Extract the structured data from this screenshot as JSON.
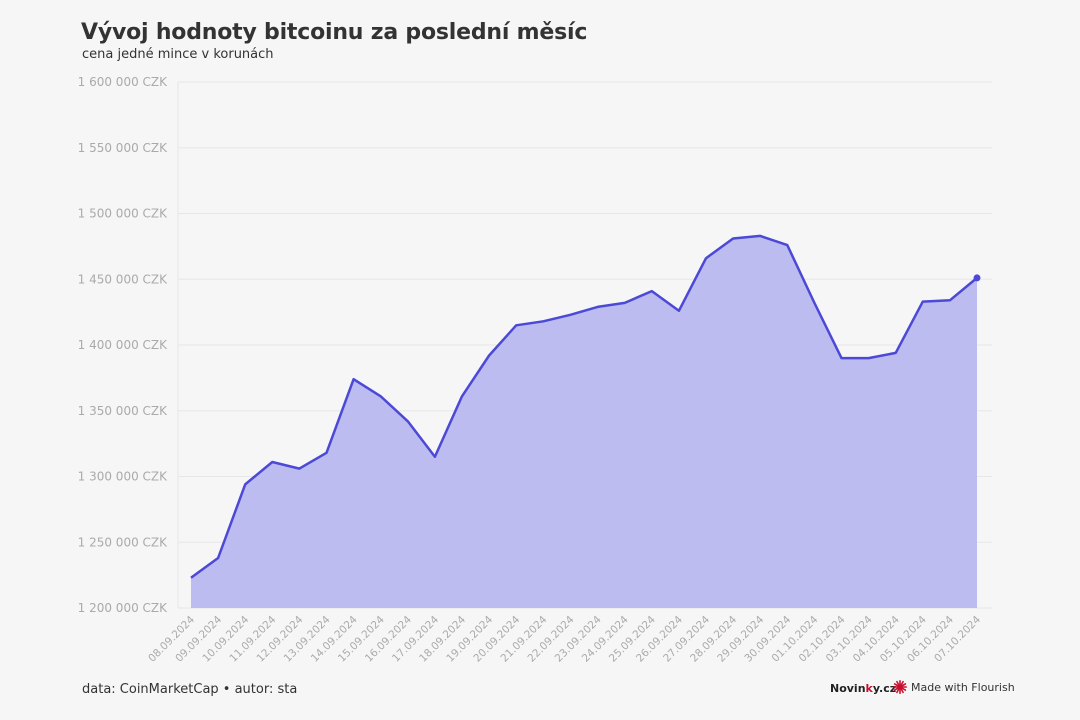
{
  "title": "Vývoj hodnoty bitcoinu za poslední měsíc",
  "subtitle": "cena jedné mince v korunách",
  "footer": {
    "source": "data: CoinMarketCap • autor: sta",
    "brand_main": "Novin",
    "brand_accent": "k",
    "brand_tail": "y.cz",
    "flourish_label": "Made with Flourish"
  },
  "colors": {
    "line": "#4b49d6",
    "area": "#bdbcf0",
    "grid": "#e7e7e7",
    "axis_text": "#aaaaaa",
    "flourish_icon": "#c8102e"
  },
  "icons": {
    "flourish": "starburst-icon"
  },
  "chart_data": {
    "type": "area",
    "title": "Vývoj hodnoty bitcoinu za poslední měsíc",
    "subtitle": "cena jedné mince v korunách",
    "xlabel": "",
    "ylabel": "",
    "ylim": [
      1200000,
      1600000
    ],
    "y_ticks": [
      1200000,
      1250000,
      1300000,
      1350000,
      1400000,
      1450000,
      1500000,
      1550000,
      1600000
    ],
    "y_tick_labels": [
      "1 200 000 CZK",
      "1 250 000 CZK",
      "1 300 000 CZK",
      "1 350 000 CZK",
      "1 400 000 CZK",
      "1 450 000 CZK",
      "1 500 000 CZK",
      "1 550 000 CZK",
      "1 600 000 CZK"
    ],
    "grid": true,
    "legend": false,
    "categories": [
      "08.09.2024",
      "09.09.2024",
      "10.09.2024",
      "11.09.2024",
      "12.09.2024",
      "13.09.2024",
      "14.09.2024",
      "15.09.2024",
      "16.09.2024",
      "17.09.2024",
      "18.09.2024",
      "19.09.2024",
      "20.09.2024",
      "21.09.2024",
      "22.09.2024",
      "23.09.2024",
      "24.09.2024",
      "25.09.2024",
      "26.09.2024",
      "27.09.2024",
      "28.09.2024",
      "29.09.2024",
      "30.09.2024",
      "01.10.2024",
      "02.10.2024",
      "03.10.2024",
      "04.10.2024",
      "05.10.2024",
      "06.10.2024",
      "07.10.2024"
    ],
    "values": [
      1223000,
      1238000,
      1294000,
      1311000,
      1306000,
      1318000,
      1374000,
      1361000,
      1342000,
      1315000,
      1361000,
      1392000,
      1415000,
      1418000,
      1423000,
      1429000,
      1432000,
      1441000,
      1426000,
      1466000,
      1481000,
      1483000,
      1476000,
      1432000,
      1390000,
      1390000,
      1394000,
      1433000,
      1434000,
      1451000
    ]
  }
}
